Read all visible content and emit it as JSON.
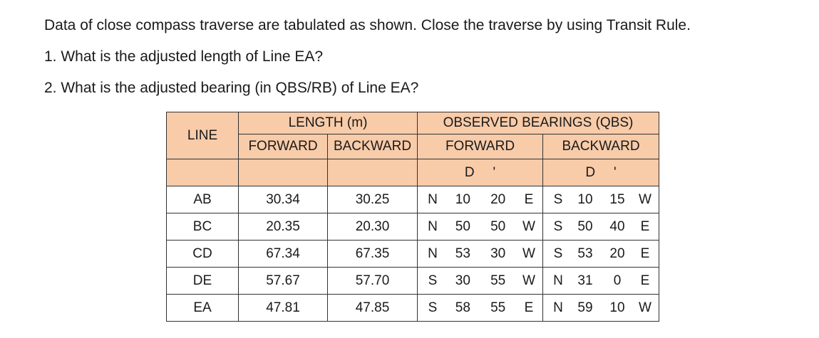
{
  "questions": [
    "Data of close compass traverse are tabulated as shown. Close the traverse by using Transit Rule.",
    "1. What is the adjusted length of Line EA?",
    "2. What is the adjusted bearing (in QBS/RB) of Line EA?"
  ],
  "table": {
    "header": {
      "line": "LINE",
      "length": "LENGTH (m)",
      "observed": "OBSERVED BEARINGS (QBS)",
      "len_forward": "FORWARD",
      "len_backward": "BACKWARD",
      "brg_forward": "FORWARD",
      "brg_backward": "BACKWARD",
      "deg": "D",
      "min": "'"
    },
    "rows": [
      {
        "line": "AB",
        "fwd": "30.34",
        "bwd": "30.25",
        "fb": [
          "N",
          "10",
          "20",
          "E"
        ],
        "bb": [
          "S",
          "10",
          "15",
          "W"
        ]
      },
      {
        "line": "BC",
        "fwd": "20.35",
        "bwd": "20.30",
        "fb": [
          "N",
          "50",
          "50",
          "W"
        ],
        "bb": [
          "S",
          "50",
          "40",
          "E"
        ]
      },
      {
        "line": "CD",
        "fwd": "67.34",
        "bwd": "67.35",
        "fb": [
          "N",
          "53",
          "30",
          "W"
        ],
        "bb": [
          "S",
          "53",
          "20",
          "E"
        ]
      },
      {
        "line": "DE",
        "fwd": "57.67",
        "bwd": "57.70",
        "fb": [
          "S",
          "30",
          "55",
          "W"
        ],
        "bb": [
          "N",
          "31",
          "0",
          "E"
        ]
      },
      {
        "line": "EA",
        "fwd": "47.81",
        "bwd": "47.85",
        "fb": [
          "S",
          "58",
          "55",
          "E"
        ],
        "bb": [
          "N",
          "59",
          "10",
          "W"
        ]
      }
    ]
  },
  "colors": {
    "header_fill": "#f8cba9"
  }
}
